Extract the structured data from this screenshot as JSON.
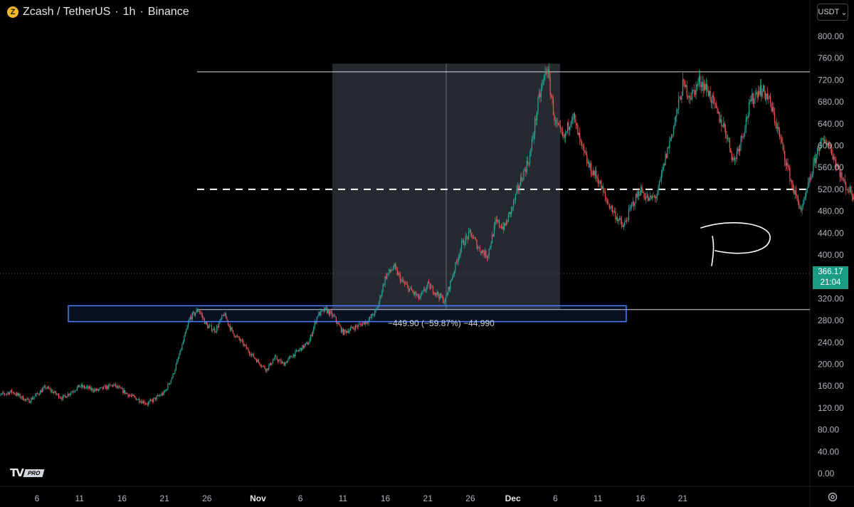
{
  "header": {
    "symbol": "Zcash / TetherUS",
    "separator1": "·",
    "interval": "1h",
    "separator2": "·",
    "exchange": "Binance",
    "coin_icon_char": "Z"
  },
  "currency_button": {
    "label": "USDT",
    "icon": "chevron-down-icon"
  },
  "price_tag": {
    "price": "366.17",
    "countdown": "21:04",
    "color": "#1a9c84"
  },
  "measure": {
    "label": "−449.90 (−59.87%) −44,990"
  },
  "logo": {
    "badge": "PRO",
    "mark": "TV"
  },
  "colors": {
    "up": "#26a69a",
    "down": "#ef5350",
    "zone": "#4a80ff",
    "range_fill": "#2a2d35"
  },
  "chart_data": {
    "type": "candlestick",
    "title": "Zcash / TetherUS · 1h · Binance",
    "yaxis": {
      "min": -20,
      "max": 820,
      "ticks": [
        "800.00",
        "760.00",
        "720.00",
        "680.00",
        "640.00",
        "600.00",
        "560.00",
        "520.00",
        "480.00",
        "440.00",
        "400.00",
        "360.00",
        "320.00",
        "280.00",
        "240.00",
        "200.00",
        "160.00",
        "120.00",
        "80.00",
        "40.00",
        "0.00"
      ],
      "tick_values": [
        800,
        760,
        720,
        680,
        640,
        600,
        560,
        520,
        480,
        440,
        400,
        360,
        320,
        280,
        240,
        200,
        160,
        120,
        80,
        40,
        0
      ]
    },
    "xaxis": {
      "labels": [
        "6",
        "11",
        "16",
        "21",
        "26",
        "Nov",
        "6",
        "11",
        "16",
        "21",
        "26",
        "Dec",
        "6",
        "11",
        "16",
        "21"
      ],
      "label_days": [
        6,
        11,
        16,
        21,
        26,
        32,
        37,
        42,
        47,
        52,
        57,
        62,
        67,
        72,
        77,
        82
      ],
      "note": "day index: Oct 1 = day 1, Nov 1 = day 32, Dec 1 = day 62"
    },
    "price_path": [
      [
        1,
        140
      ],
      [
        3,
        150
      ],
      [
        5,
        132
      ],
      [
        7,
        158
      ],
      [
        9,
        138
      ],
      [
        11,
        160
      ],
      [
        13,
        152
      ],
      [
        15,
        162
      ],
      [
        17,
        142
      ],
      [
        19,
        128
      ],
      [
        21,
        148
      ],
      [
        22,
        180
      ],
      [
        23,
        230
      ],
      [
        24,
        285
      ],
      [
        25,
        300
      ],
      [
        26,
        270
      ],
      [
        27,
        262
      ],
      [
        28,
        292
      ],
      [
        29,
        258
      ],
      [
        30,
        242
      ],
      [
        31,
        222
      ],
      [
        32,
        205
      ],
      [
        33,
        190
      ],
      [
        34,
        212
      ],
      [
        35,
        200
      ],
      [
        36,
        215
      ],
      [
        37,
        228
      ],
      [
        38,
        240
      ],
      [
        39,
        290
      ],
      [
        40,
        300
      ],
      [
        41,
        285
      ],
      [
        42,
        258
      ],
      [
        43,
        265
      ],
      [
        44,
        272
      ],
      [
        45,
        280
      ],
      [
        46,
        300
      ],
      [
        47,
        360
      ],
      [
        48,
        378
      ],
      [
        49,
        350
      ],
      [
        50,
        335
      ],
      [
        51,
        320
      ],
      [
        52,
        345
      ],
      [
        53,
        330
      ],
      [
        54,
        315
      ],
      [
        55,
        368
      ],
      [
        56,
        420
      ],
      [
        57,
        440
      ],
      [
        58,
        412
      ],
      [
        59,
        398
      ],
      [
        60,
        460
      ],
      [
        61,
        450
      ],
      [
        62,
        490
      ],
      [
        63,
        540
      ],
      [
        64,
        580
      ],
      [
        65,
        680
      ],
      [
        66,
        745
      ],
      [
        67,
        640
      ],
      [
        68,
        610
      ],
      [
        69,
        660
      ],
      [
        70,
        600
      ],
      [
        71,
        560
      ],
      [
        72,
        540
      ],
      [
        73,
        500
      ],
      [
        74,
        475
      ],
      [
        75,
        450
      ],
      [
        76,
        490
      ],
      [
        77,
        520
      ],
      [
        78,
        500
      ],
      [
        79,
        510
      ],
      [
        80,
        580
      ],
      [
        81,
        640
      ],
      [
        82,
        710
      ],
      [
        83,
        690
      ],
      [
        84,
        720
      ],
      [
        85,
        700
      ],
      [
        86,
        660
      ],
      [
        87,
        630
      ],
      [
        88,
        570
      ],
      [
        89,
        620
      ],
      [
        90,
        680
      ],
      [
        91,
        705
      ],
      [
        92,
        690
      ],
      [
        93,
        640
      ],
      [
        94,
        580
      ],
      [
        95,
        520
      ],
      [
        96,
        480
      ],
      [
        97,
        540
      ],
      [
        98,
        600
      ],
      [
        99,
        610
      ],
      [
        100,
        570
      ],
      [
        101,
        530
      ],
      [
        102,
        510
      ],
      [
        103,
        490
      ],
      [
        104,
        470
      ],
      [
        105,
        450
      ],
      [
        106,
        440
      ],
      [
        107,
        420
      ],
      [
        108,
        380
      ],
      [
        109,
        340
      ],
      [
        110,
        320
      ],
      [
        111,
        305
      ],
      [
        112,
        330
      ],
      [
        113,
        350
      ],
      [
        114,
        368
      ]
    ],
    "series": [],
    "annotations": {
      "top_line": 735,
      "mid_dashed_line": 520,
      "bottom_line": 300,
      "demand_zone": [
        278,
        307
      ],
      "measure_box": {
        "high": 750,
        "low": 300,
        "change": "−449.90 (−59.87%) −44,990"
      },
      "handwritten_letter": "D"
    },
    "grid": false,
    "current_price": 366.17
  }
}
